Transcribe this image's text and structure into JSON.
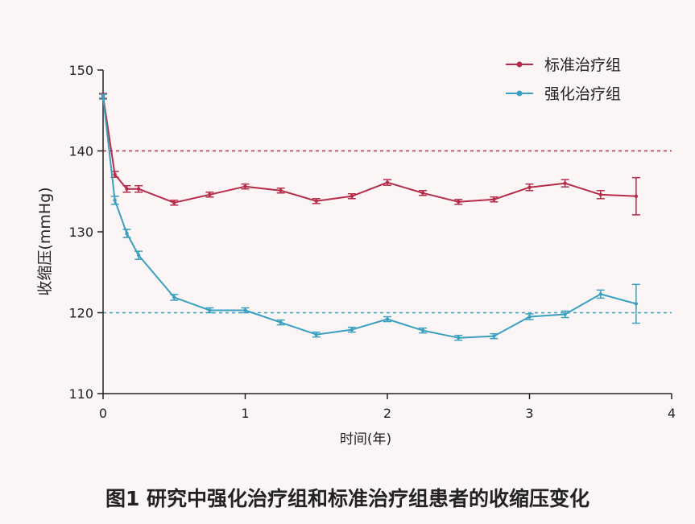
{
  "chart_data": {
    "type": "line",
    "xlabel": "时间(年)",
    "ylabel": "收缩压(mmHg)",
    "xlim": [
      0,
      4
    ],
    "ylim": [
      110,
      150
    ],
    "x_ticks": [
      "0",
      "1",
      "2",
      "3",
      "4"
    ],
    "y_ticks": [
      "110",
      "120",
      "130",
      "140",
      "150"
    ],
    "legend_position": "top-right",
    "reference_lines": [
      {
        "y": 140,
        "color": "#b52b48"
      },
      {
        "y": 120,
        "color": "#3aa0c0"
      }
    ],
    "series": [
      {
        "name": "标准治疗组",
        "color": "#b52b48",
        "x": [
          0,
          0.083,
          0.167,
          0.25,
          0.5,
          0.75,
          1.0,
          1.25,
          1.5,
          1.75,
          2.0,
          2.25,
          2.5,
          2.75,
          3.0,
          3.25,
          3.5,
          3.75
        ],
        "y": [
          146.8,
          137.1,
          135.3,
          135.3,
          133.6,
          134.6,
          135.6,
          135.1,
          133.8,
          134.4,
          136.1,
          134.8,
          133.7,
          134.0,
          135.5,
          136.0,
          134.6,
          134.4
        ],
        "err": [
          0.3,
          0.35,
          0.4,
          0.4,
          0.3,
          0.3,
          0.3,
          0.3,
          0.3,
          0.3,
          0.35,
          0.3,
          0.3,
          0.3,
          0.4,
          0.45,
          0.5,
          2.3
        ]
      },
      {
        "name": "强化治疗组",
        "color": "#3aa0c0",
        "x": [
          0,
          0.083,
          0.167,
          0.25,
          0.5,
          0.75,
          1.0,
          1.25,
          1.5,
          1.75,
          2.0,
          2.25,
          2.5,
          2.75,
          3.0,
          3.25,
          3.5,
          3.75
        ],
        "y": [
          146.7,
          133.9,
          129.8,
          127.1,
          121.9,
          120.3,
          120.3,
          118.8,
          117.3,
          117.9,
          119.2,
          117.8,
          116.9,
          117.1,
          119.5,
          119.8,
          122.3,
          121.1
        ],
        "err": [
          0.3,
          0.5,
          0.5,
          0.5,
          0.35,
          0.3,
          0.3,
          0.3,
          0.3,
          0.3,
          0.3,
          0.3,
          0.3,
          0.3,
          0.35,
          0.4,
          0.5,
          2.4
        ]
      }
    ]
  },
  "caption": "图1  研究中强化治疗组和标准治疗组患者的收缩压变化"
}
